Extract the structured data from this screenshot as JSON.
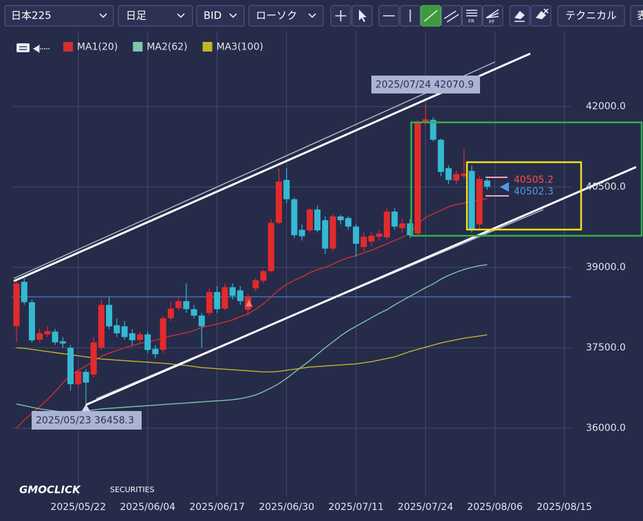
{
  "toolbar": {
    "symbol": "日本225",
    "period": "日足",
    "price_type": "BID",
    "chart_style": "ローソク",
    "fr": "FR",
    "ff": "FF",
    "technical": "テクニカル",
    "cut_off": "表"
  },
  "chart_data": {
    "type": "candlestick",
    "categories": [
      null,
      null,
      null,
      null,
      null,
      null,
      null,
      null,
      "2025/05/22",
      null,
      null,
      null,
      null,
      null,
      null,
      null,
      null,
      "2025/06/04",
      null,
      null,
      null,
      null,
      null,
      null,
      null,
      null,
      "2025/06/17",
      null,
      null,
      null,
      null,
      null,
      null,
      null,
      null,
      "2025/06/30",
      null,
      null,
      null,
      null,
      null,
      null,
      null,
      null,
      "2025/07/11",
      null,
      null,
      null,
      null,
      null,
      null,
      null,
      null,
      "2025/07/24",
      null,
      null,
      null,
      null,
      null,
      null,
      null,
      null,
      "2025/08/06",
      null,
      null,
      null,
      null,
      null,
      null,
      null,
      null,
      "2025/08/15"
    ],
    "open": [
      37900,
      38730,
      38350,
      37650,
      37750,
      37800,
      37620,
      37500,
      36820,
      37050,
      37000,
      37500,
      38300,
      37920,
      37900,
      37770,
      37650,
      37750,
      37480,
      37460,
      38050,
      38240,
      38370,
      38220,
      38100,
      38150,
      38540,
      38230,
      38630,
      38570,
      38210,
      38610,
      38750,
      38930,
      39830,
      40630,
      40270,
      39700,
      39690,
      40080,
      39880,
      39350,
      39950,
      39920,
      39760,
      39380,
      39480,
      39570,
      39560,
      40040,
      39730,
      39820,
      39630,
      41700,
      41750,
      41380,
      40850,
      40620,
      40700,
      40800,
      39800,
      40620,
      null,
      null,
      null,
      null,
      null,
      null,
      null,
      null,
      null,
      null
    ],
    "high": [
      38750,
      38800,
      38400,
      37850,
      37900,
      37850,
      37700,
      37550,
      37100,
      37100,
      37700,
      38400,
      38450,
      38050,
      38000,
      37850,
      37800,
      37800,
      37550,
      38100,
      38350,
      38450,
      38700,
      38300,
      38150,
      38600,
      38650,
      38700,
      38700,
      38650,
      38500,
      38800,
      38950,
      39900,
      40850,
      40850,
      40300,
      39800,
      40100,
      40150,
      39950,
      40000,
      39980,
      39950,
      39800,
      39650,
      39650,
      39700,
      40100,
      40100,
      39900,
      39900,
      41750,
      42070.9,
      41800,
      41400,
      40900,
      40800,
      41200,
      40900,
      40700,
      40650,
      null,
      null,
      null,
      null,
      null,
      null,
      null,
      null,
      null,
      null
    ],
    "low": [
      37600,
      38300,
      37600,
      37600,
      37700,
      37550,
      37500,
      36700,
      36750,
      36458.3,
      36950,
      37450,
      37850,
      37700,
      37650,
      37550,
      37600,
      37400,
      37300,
      37400,
      38000,
      38200,
      38150,
      38050,
      37500,
      38100,
      38150,
      38200,
      38400,
      38300,
      38100,
      38550,
      38700,
      38900,
      39800,
      40200,
      39550,
      39500,
      39650,
      39650,
      39250,
      39300,
      39800,
      39700,
      39200,
      39300,
      39400,
      39500,
      39500,
      39700,
      39650,
      39550,
      39580,
      41650,
      41350,
      40700,
      40550,
      40550,
      40650,
      39650,
      39700,
      40450,
      null,
      null,
      null,
      null,
      null,
      null,
      null,
      null,
      null,
      null
    ],
    "close": [
      38700,
      38350,
      37640,
      37770,
      37810,
      37600,
      37580,
      36820,
      37060,
      36850,
      37600,
      38300,
      37900,
      37770,
      37700,
      37640,
      37750,
      37460,
      37380,
      38050,
      38230,
      38370,
      38220,
      38100,
      37900,
      38540,
      38220,
      38630,
      38470,
      38370,
      38450,
      38760,
      38930,
      39830,
      40600,
      40270,
      39600,
      39580,
      40080,
      39690,
      39350,
      39950,
      39880,
      39760,
      39440,
      39570,
      39590,
      39630,
      40040,
      39760,
      39820,
      39600,
      41700,
      41760,
      41380,
      40780,
      40630,
      40740,
      40750,
      39700,
      40650,
      40505.2,
      null,
      null,
      null,
      null,
      null,
      null,
      null,
      null,
      null,
      null
    ],
    "up_color": "#e32b2b",
    "down_color": "#35b9d3",
    "series": [
      {
        "name": "MA1(20)",
        "color": "#d3302c",
        "values": [
          36000,
          36150,
          36280,
          36400,
          36530,
          36680,
          36840,
          36990,
          37080,
          37160,
          37250,
          37340,
          37400,
          37450,
          37500,
          37540,
          37580,
          37610,
          37640,
          37680,
          37720,
          37750,
          37780,
          37820,
          37880,
          37910,
          37940,
          37980,
          38020,
          38080,
          38130,
          38220,
          38320,
          38450,
          38580,
          38680,
          38760,
          38820,
          38900,
          38960,
          39000,
          39060,
          39130,
          39180,
          39220,
          39270,
          39320,
          39380,
          39440,
          39500,
          39560,
          39640,
          39800,
          39930,
          40000,
          40060,
          40130,
          40170,
          40200,
          40230,
          40260,
          40280,
          null,
          null,
          null,
          null,
          null,
          null,
          null,
          null,
          null,
          null
        ]
      },
      {
        "name": "MA2(62)",
        "color": "#7cc8ad",
        "values": [
          36450,
          36420,
          36390,
          36360,
          36340,
          36320,
          36300,
          36300,
          36310,
          36320,
          36340,
          36360,
          36370,
          36380,
          36390,
          36400,
          36410,
          36420,
          36430,
          36440,
          36450,
          36460,
          36470,
          36480,
          36490,
          36500,
          36510,
          36520,
          36530,
          36550,
          36580,
          36620,
          36680,
          36750,
          36830,
          36930,
          37040,
          37150,
          37260,
          37380,
          37500,
          37610,
          37720,
          37820,
          37900,
          37980,
          38060,
          38140,
          38210,
          38300,
          38380,
          38460,
          38540,
          38620,
          38690,
          38780,
          38850,
          38910,
          38960,
          39000,
          39030,
          39050,
          null,
          null,
          null,
          null,
          null,
          null,
          null,
          null,
          null,
          null
        ]
      },
      {
        "name": "MA3(100)",
        "color": "#c2b62a",
        "values": [
          37500,
          37490,
          37470,
          37450,
          37430,
          37410,
          37390,
          37370,
          37350,
          37330,
          37310,
          37290,
          37280,
          37270,
          37260,
          37250,
          37240,
          37230,
          37220,
          37210,
          37200,
          37180,
          37170,
          37150,
          37130,
          37120,
          37110,
          37100,
          37090,
          37080,
          37070,
          37060,
          37050,
          37050,
          37060,
          37080,
          37100,
          37120,
          37140,
          37150,
          37160,
          37170,
          37180,
          37190,
          37200,
          37220,
          37240,
          37270,
          37300,
          37330,
          37380,
          37430,
          37470,
          37510,
          37550,
          37590,
          37620,
          37650,
          37680,
          37700,
          37720,
          37740,
          null,
          null,
          null,
          null,
          null,
          null,
          null,
          null,
          null,
          null
        ]
      }
    ],
    "ylim": [
      34730,
      43410
    ],
    "yticks": [
      {
        "value": 36000,
        "label": "36000.0"
      },
      {
        "value": 37500,
        "label": "37500.0"
      },
      {
        "value": 39000,
        "label": "39000.0"
      },
      {
        "value": 40500,
        "label": "40500.0"
      },
      {
        "value": 42000,
        "label": "42000.0"
      }
    ],
    "grid": true,
    "reference_line": 38450,
    "annotations": [
      "2025/07/24 42070.9",
      "2025/05/23 36458.3"
    ],
    "bid": 40505.2,
    "ask": 40502.3,
    "watermark": "GMOCLICK",
    "watermark_sub": "SECURITIES"
  }
}
